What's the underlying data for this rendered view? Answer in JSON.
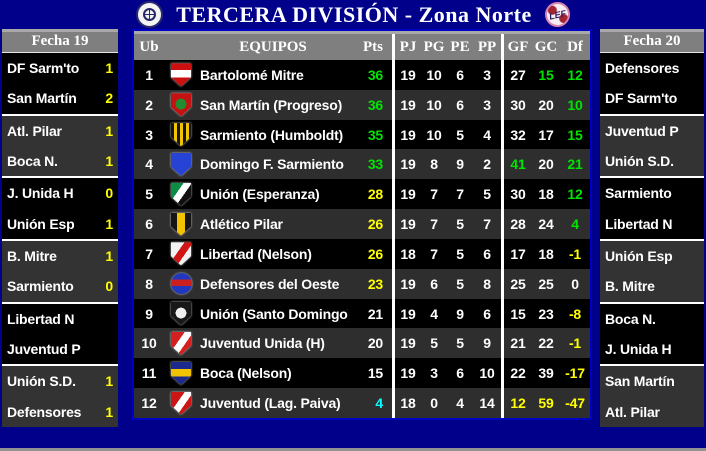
{
  "header": {
    "title": "TERCERA DIVISIÓN - Zona Norte",
    "left_logo": "club-badge",
    "right_logo_text": "LEF"
  },
  "palette": {
    "white": "#ffffff",
    "green": "#00e400",
    "yellow": "#ffff00",
    "cyan": "#00ffff",
    "navy": "#00008b",
    "header_gray": "#7f7f7f",
    "row_dark": "#000000",
    "row_light": "#2e2e2e"
  },
  "left_panel": {
    "title": "Fecha 19",
    "fixtures": [
      {
        "team": "DF Sarm'to",
        "score": "1"
      },
      {
        "team": "San Martín",
        "score": "2"
      },
      {
        "team": "Atl. Pilar",
        "score": "1"
      },
      {
        "team": "Boca N.",
        "score": "1"
      },
      {
        "team": "J. Unida H",
        "score": "0"
      },
      {
        "team": "Unión Esp",
        "score": "1"
      },
      {
        "team": "B. Mitre",
        "score": "1"
      },
      {
        "team": "Sarmiento",
        "score": "0"
      },
      {
        "team": "Libertad N",
        "score": ""
      },
      {
        "team": "Juventud P",
        "score": ""
      },
      {
        "team": "Unión S.D.",
        "score": "1"
      },
      {
        "team": "Defensores",
        "score": "1"
      }
    ]
  },
  "right_panel": {
    "title": "Fecha 20",
    "fixtures": [
      {
        "team": "Defensores",
        "score": ""
      },
      {
        "team": "DF Sarm'to",
        "score": ""
      },
      {
        "team": "Juventud P",
        "score": ""
      },
      {
        "team": "Unión S.D.",
        "score": ""
      },
      {
        "team": "Sarmiento",
        "score": ""
      },
      {
        "team": "Libertad N",
        "score": ""
      },
      {
        "team": "Unión Esp",
        "score": ""
      },
      {
        "team": "B. Mitre",
        "score": ""
      },
      {
        "team": "Boca N.",
        "score": ""
      },
      {
        "team": "J. Unida H",
        "score": ""
      },
      {
        "team": "San Martín",
        "score": ""
      },
      {
        "team": "Atl. Pilar",
        "score": ""
      }
    ]
  },
  "standings": {
    "columns": [
      "Ub",
      "EQUIPOS",
      "Pts",
      "PJ",
      "PG",
      "PE",
      "PP",
      "GF",
      "GC",
      "Df"
    ],
    "rows": [
      {
        "ub": "1",
        "team": "Bartolomé Mitre",
        "pts": "36",
        "pj": "19",
        "pg": "10",
        "pe": "6",
        "pp": "3",
        "gf": "27",
        "gc": "15",
        "df": "12",
        "colors": {
          "pts": "green",
          "gf": "white",
          "gc": "green",
          "df": "green"
        },
        "logo": {
          "shape": "shield",
          "pattern": "band",
          "base": "#cc0f0f",
          "detail": "#ffffff"
        }
      },
      {
        "ub": "2",
        "team": "San Martín (Progreso)",
        "pts": "36",
        "pj": "19",
        "pg": "10",
        "pe": "6",
        "pp": "3",
        "gf": "30",
        "gc": "20",
        "df": "10",
        "colors": {
          "pts": "green",
          "gf": "white",
          "gc": "white",
          "df": "green"
        },
        "logo": {
          "shape": "shield",
          "pattern": "circle",
          "base": "#c41212",
          "detail": "#1f8c2f"
        }
      },
      {
        "ub": "3",
        "team": "Sarmiento (Humboldt)",
        "pts": "35",
        "pj": "19",
        "pg": "10",
        "pe": "5",
        "pp": "4",
        "gf": "32",
        "gc": "17",
        "df": "15",
        "colors": {
          "pts": "green",
          "gf": "white",
          "gc": "white",
          "df": "green"
        },
        "logo": {
          "shape": "shield",
          "pattern": "stripes",
          "base": "#151515",
          "detail": "#f2c300"
        }
      },
      {
        "ub": "4",
        "team": "Domingo F. Sarmiento",
        "pts": "33",
        "pj": "19",
        "pg": "8",
        "pe": "9",
        "pp": "2",
        "gf": "41",
        "gc": "20",
        "df": "21",
        "colors": {
          "pts": "green",
          "gf": "green",
          "gc": "white",
          "df": "green"
        },
        "logo": {
          "shape": "shield",
          "pattern": "plain",
          "base": "#2743d6",
          "detail": "#ffffff"
        }
      },
      {
        "ub": "5",
        "team": "Unión (Esperanza)",
        "pts": "28",
        "pj": "19",
        "pg": "7",
        "pe": "7",
        "pp": "5",
        "gf": "30",
        "gc": "18",
        "df": "12",
        "colors": {
          "pts": "yellow",
          "gf": "white",
          "gc": "white",
          "df": "green"
        },
        "logo": {
          "shape": "shield",
          "pattern": "trisash",
          "base": "#101010",
          "detail": "#0d8c46"
        }
      },
      {
        "ub": "6",
        "team": "Atlético Pilar",
        "pts": "26",
        "pj": "19",
        "pg": "7",
        "pe": "5",
        "pp": "7",
        "gf": "28",
        "gc": "24",
        "df": "4",
        "colors": {
          "pts": "yellow",
          "gf": "white",
          "gc": "white",
          "df": "green"
        },
        "logo": {
          "shape": "shield",
          "pattern": "vband",
          "base": "#151515",
          "detail": "#f2c300"
        }
      },
      {
        "ub": "7",
        "team": "Libertad (Nelson)",
        "pts": "26",
        "pj": "18",
        "pg": "7",
        "pe": "5",
        "pp": "6",
        "gf": "17",
        "gc": "18",
        "df": "-1",
        "colors": {
          "pts": "yellow",
          "gf": "white",
          "gc": "white",
          "df": "yellow"
        },
        "logo": {
          "shape": "shield",
          "pattern": "sash",
          "base": "#f2f2f2",
          "detail": "#d11414"
        }
      },
      {
        "ub": "8",
        "team": "Defensores del Oeste",
        "pts": "23",
        "pj": "19",
        "pg": "6",
        "pe": "5",
        "pp": "8",
        "gf": "25",
        "gc": "25",
        "df": "0",
        "colors": {
          "pts": "yellow",
          "gf": "white",
          "gc": "white",
          "df": "white"
        },
        "logo": {
          "shape": "circle",
          "pattern": "band",
          "base": "#2038c0",
          "detail": "#cc2020"
        }
      },
      {
        "ub": "9",
        "team": "Unión (Santo Domingo)",
        "pts": "21",
        "pj": "19",
        "pg": "4",
        "pe": "9",
        "pp": "6",
        "gf": "15",
        "gc": "23",
        "df": "-8",
        "colors": {
          "pts": "white",
          "gf": "white",
          "gc": "white",
          "df": "yellow"
        },
        "logo": {
          "shape": "shield",
          "pattern": "circle",
          "base": "#181818",
          "detail": "#f0f0f0"
        }
      },
      {
        "ub": "10",
        "team": "Juventud Unida (H)",
        "pts": "20",
        "pj": "19",
        "pg": "5",
        "pe": "5",
        "pp": "9",
        "gf": "21",
        "gc": "22",
        "df": "-1",
        "colors": {
          "pts": "white",
          "gf": "white",
          "gc": "white",
          "df": "yellow"
        },
        "logo": {
          "shape": "shield",
          "pattern": "sash",
          "base": "#d42020",
          "detail": "#ffffff"
        }
      },
      {
        "ub": "11",
        "team": "Boca (Nelson)",
        "pts": "15",
        "pj": "19",
        "pg": "3",
        "pe": "6",
        "pp": "10",
        "gf": "22",
        "gc": "39",
        "df": "-17",
        "colors": {
          "pts": "white",
          "gf": "white",
          "gc": "white",
          "df": "yellow"
        },
        "logo": {
          "shape": "shield",
          "pattern": "band",
          "base": "#1b2a8c",
          "detail": "#f2c300"
        }
      },
      {
        "ub": "12",
        "team": "Juventud (Lag. Paiva)",
        "pts": "4",
        "pj": "18",
        "pg": "0",
        "pe": "4",
        "pp": "14",
        "gf": "12",
        "gc": "59",
        "df": "-47",
        "colors": {
          "pts": "cyan",
          "gf": "yellow",
          "gc": "yellow",
          "df": "yellow"
        },
        "logo": {
          "shape": "shield",
          "pattern": "sash",
          "base": "#cc1616",
          "detail": "#ffffff"
        }
      }
    ]
  }
}
